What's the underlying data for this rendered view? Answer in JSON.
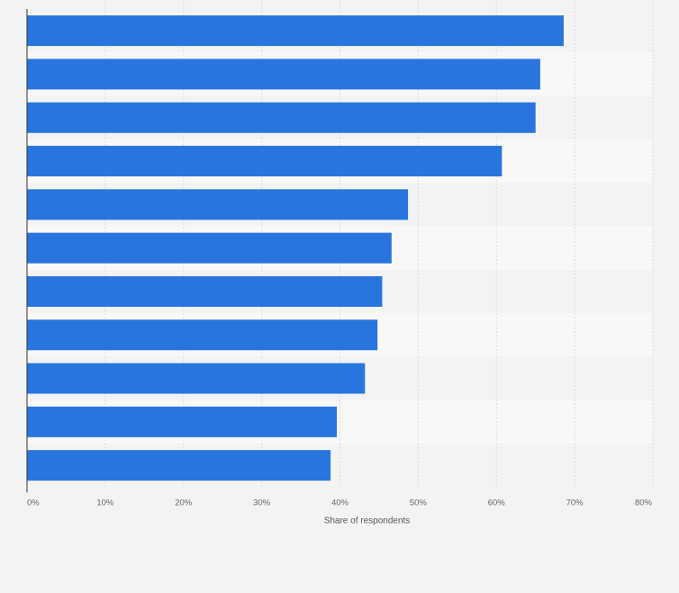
{
  "chart_data": {
    "type": "bar",
    "orientation": "horizontal",
    "categories": [
      "",
      "",
      "",
      "",
      "",
      "",
      "",
      "",
      "",
      "",
      ""
    ],
    "values": [
      68.6,
      65.6,
      65.0,
      60.7,
      48.7,
      46.6,
      45.4,
      44.8,
      43.2,
      39.6,
      38.8
    ],
    "value_unit": "%",
    "xlabel": "Share of respondents",
    "xlim": [
      0,
      80
    ],
    "xticks": [
      0,
      10,
      20,
      30,
      40,
      50,
      60,
      70,
      80
    ],
    "xtick_labels": [
      "0%",
      "10%",
      "20%",
      "30%",
      "40%",
      "50%",
      "60%",
      "70%",
      "80%"
    ],
    "grid": true,
    "bar_color": "#2876dd",
    "band_colors": [
      "#f3f3f4",
      "#f8f8f9"
    ]
  }
}
